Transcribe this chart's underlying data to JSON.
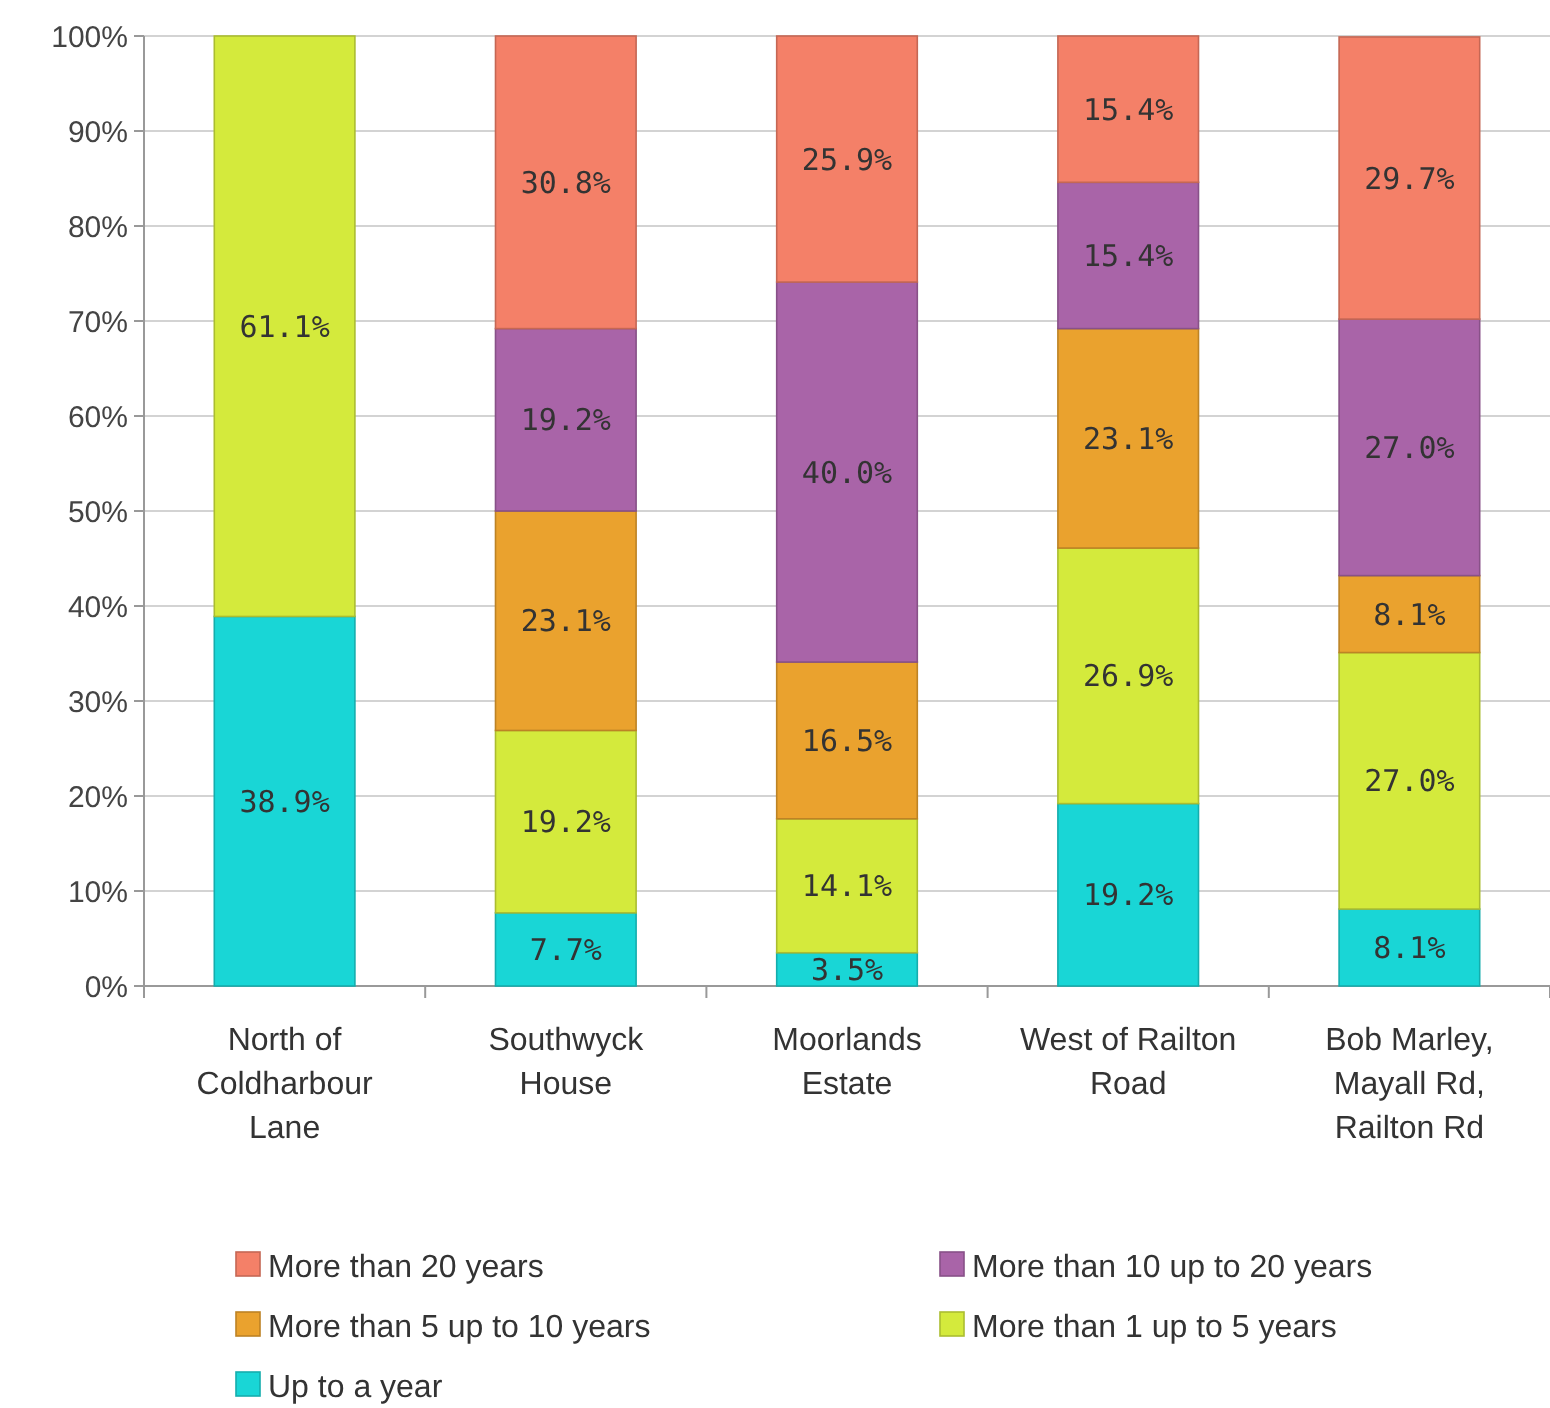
{
  "chart_data": {
    "type": "bar",
    "stacked": true,
    "categories": [
      "North of Coldharbour Lane",
      "Southwyck House",
      "Moorlands Estate",
      "West of Railton Road",
      "Bob Marley, Mayall Rd, Railton Rd"
    ],
    "series": [
      {
        "name": "Up to a year",
        "color": "#19d6d6",
        "values": [
          38.9,
          7.7,
          3.5,
          19.2,
          8.1
        ],
        "value_labels": [
          "38.9%",
          "7.7%",
          "3.5%",
          "19.2%",
          "8.1%"
        ]
      },
      {
        "name": "More than 1 up to 5 years",
        "color": "#d4ea3c",
        "values": [
          61.1,
          19.2,
          14.1,
          26.9,
          27.0
        ],
        "value_labels": [
          "61.1%",
          "19.2%",
          "14.1%",
          "26.9%",
          "27.0%"
        ]
      },
      {
        "name": "More than 5 up to 10 years",
        "color": "#eaa22e",
        "values": [
          null,
          23.1,
          16.5,
          23.1,
          8.1
        ],
        "value_labels": [
          null,
          "23.1%",
          "16.5%",
          "23.1%",
          "8.1%"
        ]
      },
      {
        "name": "More than 10 up to 20 years",
        "color": "#a964a8",
        "values": [
          null,
          19.2,
          40.0,
          15.4,
          27.0
        ],
        "value_labels": [
          null,
          "19.2%",
          "40.0%",
          "15.4%",
          "27.0%"
        ]
      },
      {
        "name": "More than 20 years",
        "color": "#f48068",
        "values": [
          null,
          30.8,
          25.9,
          15.4,
          29.7
        ],
        "value_labels": [
          null,
          "30.8%",
          "25.9%",
          "15.4%",
          "29.7%"
        ]
      }
    ],
    "ylim": [
      0,
      100
    ],
    "yticks": [
      {
        "value": 0,
        "label": "0%"
      },
      {
        "value": 10,
        "label": "10%"
      },
      {
        "value": 20,
        "label": "20%"
      },
      {
        "value": 30,
        "label": "30%"
      },
      {
        "value": 40,
        "label": "40%"
      },
      {
        "value": 50,
        "label": "50%"
      },
      {
        "value": 60,
        "label": "60%"
      },
      {
        "value": 70,
        "label": "70%"
      },
      {
        "value": 80,
        "label": "80%"
      },
      {
        "value": 90,
        "label": "90%"
      },
      {
        "value": 100,
        "label": "100%"
      }
    ],
    "grid": "y",
    "legend": "bottom"
  }
}
